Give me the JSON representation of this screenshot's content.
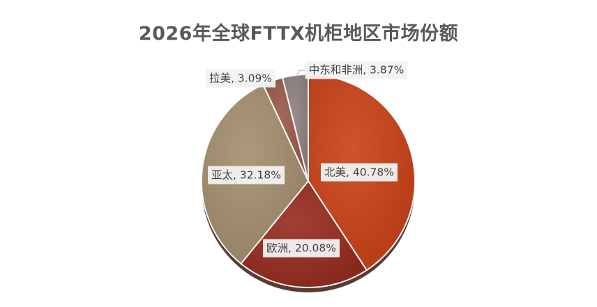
{
  "chart_data": {
    "type": "pie",
    "title": "2026年全球FTTX机柜地区市场份额",
    "slices": [
      {
        "name": "北美",
        "value": 40.78,
        "label": "北美, 40.78%",
        "color": "#C94117"
      },
      {
        "name": "欧洲",
        "value": 20.08,
        "label": "欧洲, 20.08%",
        "color": "#962B1F"
      },
      {
        "name": "亚太",
        "value": 32.18,
        "label": "亚太, 32.18%",
        "color": "#A38E6E"
      },
      {
        "name": "拉美",
        "value": 3.09,
        "label": "拉美, 3.09%",
        "color": "#985848"
      },
      {
        "name": "中东和非洲",
        "value": 3.87,
        "label": "中东和非洲, 3.87%",
        "color": "#8D8080"
      }
    ],
    "start_angle_deg": 0,
    "direction": "clockwise",
    "legend": "none",
    "data_labels": "name-and-percent"
  }
}
